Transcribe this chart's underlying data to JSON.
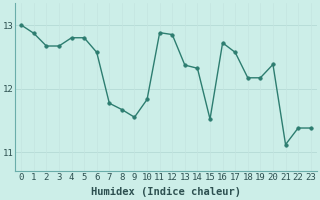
{
  "x": [
    0,
    1,
    2,
    3,
    4,
    5,
    6,
    7,
    8,
    9,
    10,
    11,
    12,
    13,
    14,
    15,
    16,
    17,
    18,
    19,
    20,
    21,
    22,
    23
  ],
  "y": [
    13.0,
    12.87,
    12.67,
    12.67,
    12.8,
    12.8,
    12.57,
    11.77,
    11.67,
    11.55,
    11.83,
    12.88,
    12.85,
    12.37,
    12.32,
    11.52,
    12.72,
    12.57,
    12.17,
    12.17,
    12.38,
    11.12,
    11.38,
    11.38
  ],
  "line_color": "#2d7d70",
  "bg_color": "#cceee8",
  "grid_color_h": "#b8ddd8",
  "grid_color_v": "#c4e4e0",
  "xlabel": "Humidex (Indice chaleur)",
  "ylim": [
    10.7,
    13.35
  ],
  "yticks": [
    11,
    12,
    13
  ],
  "xticks": [
    0,
    1,
    2,
    3,
    4,
    5,
    6,
    7,
    8,
    9,
    10,
    11,
    12,
    13,
    14,
    15,
    16,
    17,
    18,
    19,
    20,
    21,
    22,
    23
  ],
  "tick_fontsize": 6.5,
  "label_fontsize": 7.5,
  "marker_size": 2.5,
  "line_width": 1.0
}
